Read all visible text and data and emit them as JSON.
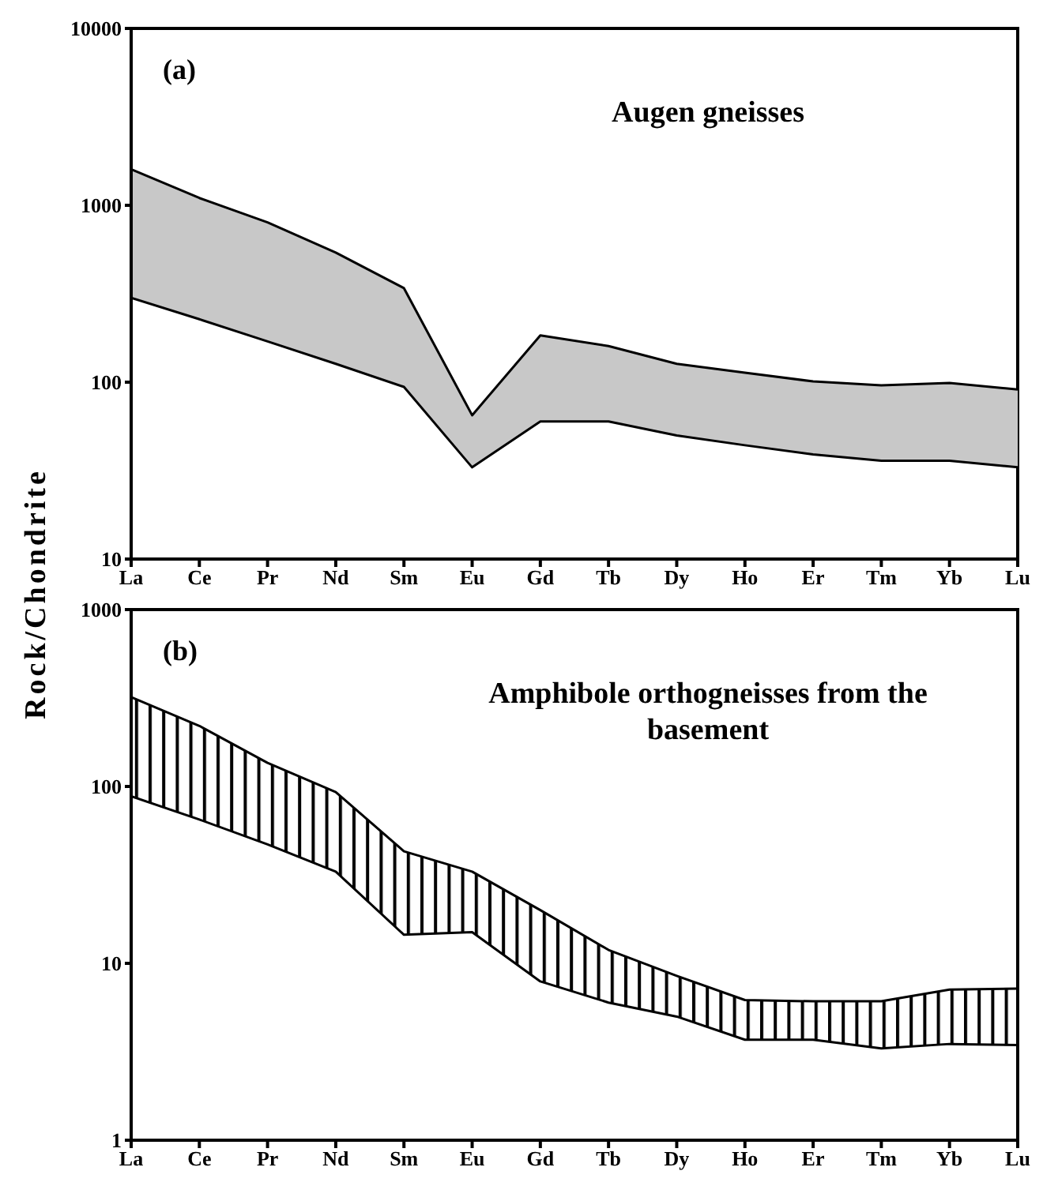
{
  "chart_data": [
    {
      "type": "line",
      "ylabel": "Rock/Chondrite",
      "annotations": [
        "(a)",
        "Augen gneisses"
      ],
      "categories": [
        "La",
        "Ce",
        "Pr",
        "Nd",
        "Sm",
        "Eu",
        "Gd",
        "Tb",
        "Dy",
        "Ho",
        "Er",
        "Tm",
        "Yb",
        "Lu"
      ],
      "log": true,
      "ylim": [
        10,
        10000
      ],
      "yticks": [
        10,
        100,
        1000,
        10000
      ],
      "series": [
        {
          "color": "#000000",
          "values": [
            300,
            227,
            170,
            127,
            94,
            33,
            60,
            60,
            50,
            44,
            39,
            36,
            36,
            33
          ]
        },
        {
          "type": "area",
          "color": "#c8c8c8",
          "values": [
            1600,
            1100,
            800,
            540,
            340,
            65,
            184,
            160,
            127,
            113,
            101,
            96,
            99,
            91
          ]
        }
      ]
    },
    {
      "type": "line",
      "annotations": [
        "(b)",
        "Amphibole orthogneisses from the basement"
      ],
      "categories": [
        "La",
        "Ce",
        "Pr",
        "Nd",
        "Sm",
        "Eu",
        "Gd",
        "Tb",
        "Dy",
        "Ho",
        "Er",
        "Tm",
        "Yb",
        "Lu"
      ],
      "log": true,
      "ylim": [
        1,
        1000
      ],
      "yticks": [
        1,
        10,
        100,
        1000
      ],
      "series": [
        {
          "color": "#000000",
          "values": [
            88,
            65,
            47,
            33,
            14.5,
            15,
            7.9,
            6,
            5,
            3.7,
            3.7,
            3.3,
            3.5,
            3.45
          ]
        },
        {
          "type": "area",
          "color": "#000000",
          "values": [
            320,
            220,
            136,
            93,
            43,
            33,
            20,
            11.9,
            8.5,
            6.2,
            6.1,
            6.1,
            7.1,
            7.2
          ]
        }
      ]
    }
  ]
}
